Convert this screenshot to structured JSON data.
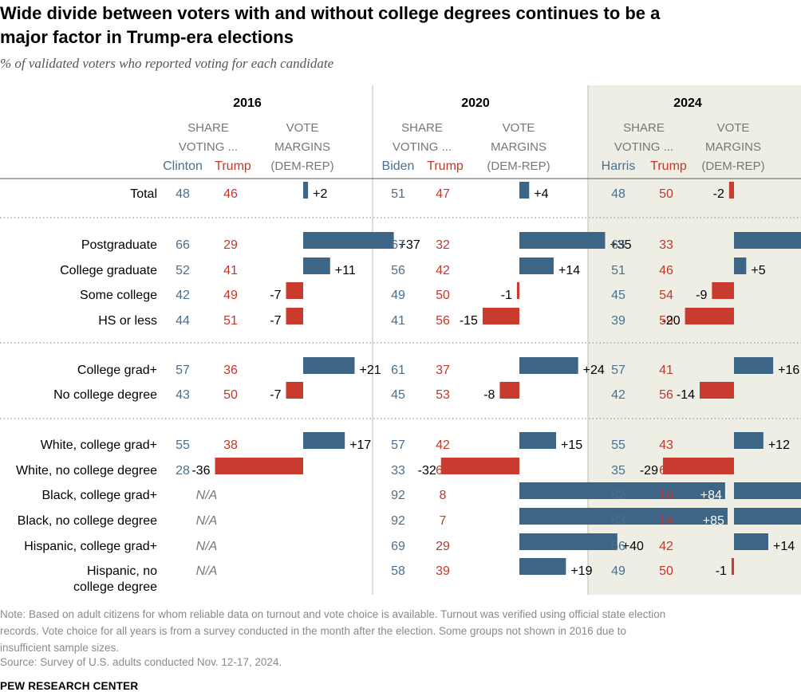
{
  "title_line1": "Wide divide between voters with and without college degrees continues to be a",
  "title_line2": "major factor in Trump-era elections",
  "subtitle": "% of validated voters who reported voting for each candidate",
  "colors": {
    "dem": "#3d6585",
    "rep": "#c93a2f",
    "text_dem": "#4a6f8f",
    "text_rep": "#c0392b",
    "shade": "#eeeee4",
    "gray": "#777777"
  },
  "chart_data": {
    "type": "table",
    "header": {
      "share_line1": "SHARE",
      "share_line2": "VOTING ...",
      "margin_line1": "VOTE",
      "margin_line2": "MARGINS",
      "margin_line3": "(DEM-REP)"
    },
    "years": [
      {
        "year": "2016",
        "dem": "Clinton",
        "rep": "Trump",
        "shaded": false
      },
      {
        "year": "2020",
        "dem": "Biden",
        "rep": "Trump",
        "shaded": false
      },
      {
        "year": "2024",
        "dem": "Harris",
        "rep": "Trump",
        "shaded": true
      }
    ],
    "na_label": "N/A",
    "groups": [
      [
        {
          "label": [
            "Total"
          ],
          "values": [
            [
              48,
              46,
              2
            ],
            [
              51,
              47,
              4
            ],
            [
              48,
              50,
              -2
            ]
          ]
        }
      ],
      [
        {
          "label": [
            "Postgraduate"
          ],
          "values": [
            [
              66,
              29,
              37
            ],
            [
              67,
              32,
              35
            ],
            [
              65,
              33,
              32
            ]
          ]
        },
        {
          "label": [
            "College graduate"
          ],
          "values": [
            [
              52,
              41,
              11
            ],
            [
              56,
              42,
              14
            ],
            [
              51,
              46,
              5
            ]
          ]
        },
        {
          "label": [
            "Some college"
          ],
          "values": [
            [
              42,
              49,
              -7
            ],
            [
              49,
              50,
              -1
            ],
            [
              45,
              54,
              -9
            ]
          ]
        },
        {
          "label": [
            "HS or less"
          ],
          "values": [
            [
              44,
              51,
              -7
            ],
            [
              41,
              56,
              -15
            ],
            [
              39,
              59,
              -20
            ]
          ]
        }
      ],
      [
        {
          "label": [
            "College grad+"
          ],
          "values": [
            [
              57,
              36,
              21
            ],
            [
              61,
              37,
              24
            ],
            [
              57,
              41,
              16
            ]
          ]
        },
        {
          "label": [
            "No college degree"
          ],
          "values": [
            [
              43,
              50,
              -7
            ],
            [
              45,
              53,
              -8
            ],
            [
              42,
              56,
              -14
            ]
          ]
        }
      ],
      [
        {
          "label": [
            "White, college grad+"
          ],
          "values": [
            [
              55,
              38,
              17
            ],
            [
              57,
              42,
              15
            ],
            [
              55,
              43,
              12
            ]
          ]
        },
        {
          "label": [
            "White, no college degree"
          ],
          "values": [
            [
              28,
              64,
              -36
            ],
            [
              33,
              65,
              -32
            ],
            [
              35,
              64,
              -29
            ]
          ]
        },
        {
          "label": [
            "Black, college grad+"
          ],
          "values": [
            null,
            [
              92,
              8,
              84
            ],
            [
              82,
              16,
              66
            ]
          ]
        },
        {
          "label": [
            "Black, no college degree"
          ],
          "values": [
            null,
            [
              92,
              7,
              85
            ],
            [
              83,
              14,
              69
            ]
          ]
        },
        {
          "label": [
            "Hispanic, college grad+"
          ],
          "values": [
            null,
            [
              69,
              29,
              40
            ],
            [
              56,
              42,
              14
            ]
          ]
        },
        {
          "label": [
            "Hispanic, no",
            "college degree"
          ],
          "values": [
            null,
            [
              58,
              39,
              19
            ],
            [
              49,
              50,
              -1
            ]
          ]
        }
      ]
    ]
  },
  "note_line1": "Note: Based on adult citizens for whom reliable data on turnout and vote choice is available. Turnout was verified using official state election",
  "note_line2": "records. Vote choice for all years is from a survey conducted in the month after the election. Some groups not shown in 2016 due to",
  "note_line3": "insufficient sample sizes.",
  "source": "Source: Survey of U.S. adults conducted Nov. 12-17, 2024.",
  "logo": "PEW RESEARCH CENTER"
}
